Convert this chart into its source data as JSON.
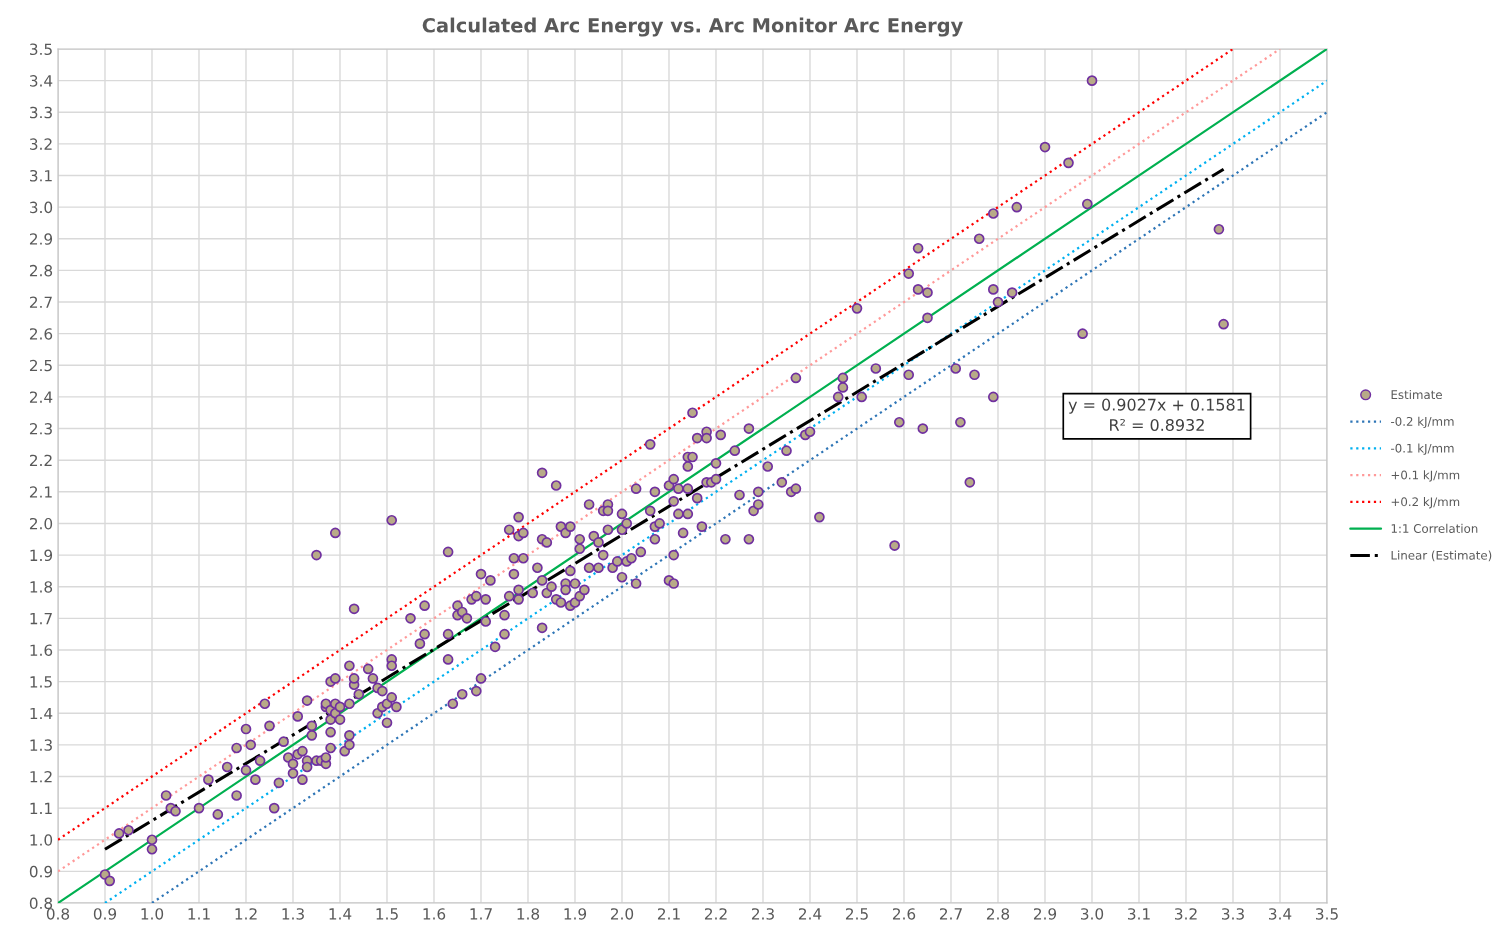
{
  "chart_data": {
    "type": "scatter",
    "title": "Calculated Arc Energy vs. Arc Monitor Arc Energy",
    "xlim": [
      0.8,
      3.5
    ],
    "ylim": [
      0.8,
      3.5
    ],
    "xticks": [
      0.8,
      0.9,
      {
        "value": 1,
        "label": "1.0"
      },
      1.1,
      1.2,
      1.3,
      1.4,
      1.5,
      1.6,
      1.7,
      1.8,
      1.9,
      {
        "value": 2,
        "label": "2.0"
      },
      2.1,
      2.2,
      2.3,
      2.4,
      2.5,
      2.6,
      2.7,
      2.8,
      2.9,
      {
        "value": 3,
        "label": "3.0"
      },
      3.1,
      3.2,
      3.3,
      3.4,
      3.5
    ],
    "yticks": [
      0.8,
      0.9,
      {
        "value": 1,
        "label": "1.0"
      },
      1.1,
      1.2,
      1.3,
      1.4,
      1.5,
      1.6,
      1.7,
      1.8,
      1.9,
      {
        "value": 2,
        "label": "2.0"
      },
      2.1,
      2.2,
      2.3,
      2.4,
      2.5,
      2.6,
      2.7,
      2.8,
      2.9,
      {
        "value": 3,
        "label": "3.0"
      },
      3.1,
      3.2,
      3.3,
      3.4,
      3.5
    ],
    "grid": true,
    "legend": "right",
    "annotations": [
      "y = 0.9027x + 0.1581\nR² = 0.8932"
    ],
    "series": [
      {
        "name": "Estimate",
        "marker": "circle",
        "color": "#b8aa88",
        "x": [
          0.9,
          0.91,
          0.93,
          0.95,
          1.0,
          1.0,
          1.03,
          1.04,
          1.05,
          1.1,
          1.12,
          1.14,
          1.16,
          1.18,
          1.18,
          1.2,
          1.2,
          1.21,
          1.22,
          1.23,
          1.24,
          1.25,
          1.26,
          1.27,
          1.28,
          1.29,
          1.3,
          1.3,
          1.31,
          1.31,
          1.32,
          1.32,
          1.33,
          1.33,
          1.33,
          1.34,
          1.34,
          1.35,
          1.35,
          1.36,
          1.37,
          1.37,
          1.37,
          1.37,
          1.38,
          1.38,
          1.38,
          1.38,
          1.38,
          1.39,
          1.39,
          1.39,
          1.39,
          1.4,
          1.4,
          1.41,
          1.42,
          1.42,
          1.42,
          1.42,
          1.43,
          1.43,
          1.43,
          1.44,
          1.46,
          1.47,
          1.48,
          1.48,
          1.49,
          1.49,
          1.5,
          1.5,
          1.51,
          1.51,
          1.51,
          1.51,
          1.52,
          1.55,
          1.57,
          1.58,
          1.58,
          1.63,
          1.63,
          1.63,
          1.64,
          1.65,
          1.65,
          1.66,
          1.66,
          1.67,
          1.68,
          1.69,
          1.69,
          1.7,
          1.7,
          1.71,
          1.71,
          1.72,
          1.73,
          1.75,
          1.75,
          1.76,
          1.76,
          1.77,
          1.77,
          1.78,
          1.78,
          1.78,
          1.78,
          1.79,
          1.79,
          1.81,
          1.82,
          1.83,
          1.83,
          1.83,
          1.83,
          1.84,
          1.84,
          1.85,
          1.86,
          1.86,
          1.87,
          1.87,
          1.88,
          1.88,
          1.88,
          1.89,
          1.89,
          1.89,
          1.9,
          1.9,
          1.91,
          1.91,
          1.91,
          1.92,
          1.93,
          1.93,
          1.94,
          1.95,
          1.95,
          1.96,
          1.96,
          1.97,
          1.97,
          1.97,
          1.98,
          1.99,
          2.0,
          2.0,
          2.0,
          2.01,
          2.01,
          2.02,
          2.03,
          2.03,
          2.04,
          2.06,
          2.06,
          2.07,
          2.07,
          2.07,
          2.08,
          2.1,
          2.1,
          2.11,
          2.11,
          2.11,
          2.11,
          2.12,
          2.12,
          2.13,
          2.14,
          2.14,
          2.14,
          2.14,
          2.15,
          2.15,
          2.16,
          2.16,
          2.17,
          2.18,
          2.18,
          2.18,
          2.19,
          2.2,
          2.2,
          2.21,
          2.22,
          2.24,
          2.25,
          2.27,
          2.27,
          2.28,
          2.29,
          2.29,
          2.31,
          2.34,
          2.35,
          2.36,
          2.37,
          2.37,
          2.39,
          2.4,
          2.42,
          2.46,
          2.47,
          2.47,
          2.5,
          2.51,
          2.54,
          2.58,
          2.59,
          2.61,
          2.61,
          2.63,
          2.63,
          2.64,
          2.65,
          2.65,
          2.71,
          2.72,
          2.74,
          2.75,
          2.76,
          2.79,
          2.79,
          2.79,
          2.8,
          2.83,
          2.84,
          2.9,
          2.95,
          2.98,
          2.99,
          3.0,
          3.27,
          3.28
        ],
        "values": [
          0.89,
          0.87,
          1.02,
          1.03,
          0.97,
          1.0,
          1.14,
          1.1,
          1.09,
          1.1,
          1.19,
          1.08,
          1.23,
          1.29,
          1.14,
          1.22,
          1.35,
          1.3,
          1.19,
          1.25,
          1.43,
          1.36,
          1.1,
          1.18,
          1.31,
          1.26,
          1.24,
          1.21,
          1.27,
          1.39,
          1.28,
          1.19,
          1.25,
          1.44,
          1.23,
          1.36,
          1.33,
          1.25,
          1.9,
          1.25,
          1.24,
          1.26,
          1.42,
          1.43,
          1.5,
          1.38,
          1.34,
          1.29,
          1.41,
          1.97,
          1.43,
          1.4,
          1.51,
          1.38,
          1.42,
          1.28,
          1.33,
          1.3,
          1.55,
          1.43,
          1.49,
          1.51,
          1.73,
          1.46,
          1.54,
          1.51,
          1.48,
          1.4,
          1.47,
          1.42,
          1.37,
          1.43,
          1.57,
          1.45,
          1.55,
          2.01,
          1.42,
          1.7,
          1.62,
          1.65,
          1.74,
          1.91,
          1.65,
          1.57,
          1.43,
          1.74,
          1.71,
          1.72,
          1.46,
          1.7,
          1.76,
          1.77,
          1.47,
          1.84,
          1.51,
          1.76,
          1.69,
          1.82,
          1.61,
          1.65,
          1.71,
          1.98,
          1.77,
          1.89,
          1.84,
          1.76,
          1.79,
          2.02,
          1.96,
          1.97,
          1.89,
          1.78,
          1.86,
          2.16,
          1.95,
          1.82,
          1.67,
          1.78,
          1.94,
          1.8,
          2.12,
          1.76,
          1.75,
          1.99,
          1.97,
          1.81,
          1.79,
          1.85,
          1.99,
          1.74,
          1.75,
          1.81,
          1.92,
          1.95,
          1.77,
          1.79,
          2.06,
          1.86,
          1.96,
          1.94,
          1.86,
          2.04,
          1.9,
          2.06,
          2.04,
          1.98,
          1.86,
          1.88,
          1.98,
          1.83,
          2.03,
          2.0,
          1.88,
          1.89,
          1.81,
          2.11,
          1.91,
          2.25,
          2.04,
          2.1,
          1.99,
          1.95,
          2.0,
          1.82,
          2.12,
          1.81,
          2.14,
          2.07,
          1.9,
          2.11,
          2.03,
          1.97,
          2.11,
          2.21,
          2.18,
          2.03,
          2.35,
          2.21,
          2.27,
          2.08,
          1.99,
          2.29,
          2.27,
          2.13,
          2.13,
          2.14,
          2.19,
          2.28,
          1.95,
          2.23,
          2.09,
          1.95,
          2.3,
          2.04,
          2.1,
          2.06,
          2.18,
          2.13,
          2.23,
          2.1,
          2.46,
          2.11,
          2.28,
          2.29,
          2.02,
          2.4,
          2.46,
          2.43,
          2.68,
          2.4,
          2.49,
          1.93,
          2.32,
          2.79,
          2.47,
          2.87,
          2.74,
          2.3,
          2.73,
          2.65,
          2.49,
          2.32,
          2.13,
          2.47,
          2.9,
          2.74,
          2.98,
          2.4,
          2.7,
          2.73,
          3.0,
          3.19,
          3.14,
          2.6,
          3.01,
          3.4,
          2.93,
          2.63
        ]
      },
      {
        "name": "-0.2 kJ/mm",
        "type": "line",
        "line_style": "dotted",
        "color": "#2e75b6",
        "x": [
          1.0,
          3.5
        ],
        "values": [
          0.8,
          3.3
        ]
      },
      {
        "name": "-0.1 kJ/mm",
        "type": "line",
        "line_style": "dotted",
        "color": "#00b0f0",
        "x": [
          0.9,
          3.5
        ],
        "values": [
          0.8,
          3.4
        ]
      },
      {
        "name": "+0.1 kJ/mm",
        "type": "line",
        "line_style": "dotted",
        "color": "#ff9999",
        "x": [
          0.8,
          3.4
        ],
        "values": [
          0.9,
          3.5
        ]
      },
      {
        "name": "+0.2 kJ/mm",
        "type": "line",
        "line_style": "dotted",
        "color": "#ff0000",
        "x": [
          0.8,
          3.3
        ],
        "values": [
          1.0,
          3.5
        ]
      },
      {
        "name": "1:1 Correlation",
        "type": "line",
        "line_style": "solid",
        "color": "#00b050",
        "x": [
          0.8,
          3.5
        ],
        "values": [
          0.8,
          3.5
        ]
      },
      {
        "name": "Linear (Estimate)",
        "type": "line",
        "line_style": "dashdot",
        "color": "#000000",
        "x": [
          0.9,
          3.28
        ],
        "values": [
          0.97,
          3.12
        ]
      }
    ]
  }
}
